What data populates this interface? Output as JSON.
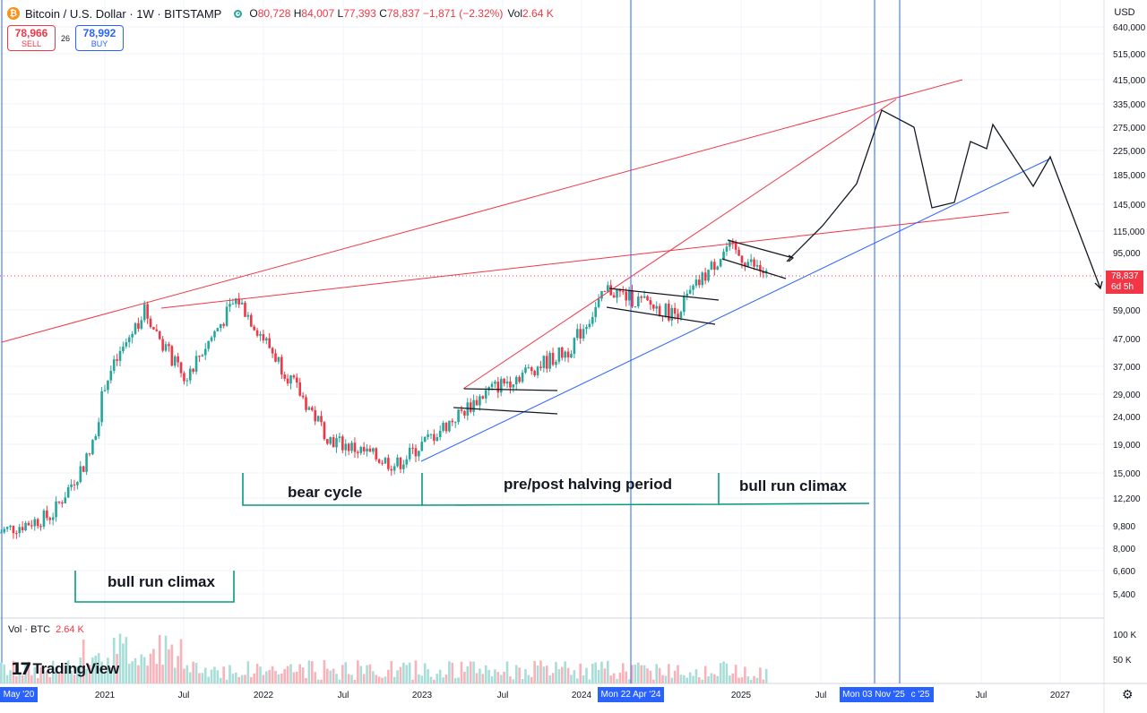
{
  "symbol": {
    "title": "Bitcoin / U.S. Dollar · 1W · BITSTAMP",
    "logo_letter": "₿"
  },
  "ohlc": {
    "open_key": "O",
    "open": "80,728",
    "high_key": "H",
    "high": "84,007",
    "low_key": "L",
    "low": "77,393",
    "close_key": "C",
    "close": "78,837",
    "change": "−1,871 (−2.32%)",
    "vol_key": "Vol",
    "vol": "2.64 K"
  },
  "trade": {
    "sell_price": "78,966",
    "sell_label": "SELL",
    "spread": "26",
    "buy_price": "78,992",
    "buy_label": "BUY"
  },
  "currency": "USD",
  "volume_pane": {
    "label": "Vol · BTC",
    "value": "2.64 K"
  },
  "branding": {
    "text": "TradingView"
  },
  "last_price": {
    "price": "78,837",
    "countdown": "6d 5h"
  },
  "colors": {
    "up": "#26a69a",
    "down": "#f23645",
    "accent": "#2962ff",
    "trendline_red": "#f23645",
    "trendline_blue": "#2962ff",
    "annotation": "#089981"
  },
  "axis": {
    "price_ticks": [
      "640,000",
      "515,000",
      "415,000",
      "335,000",
      "275,000",
      "225,000",
      "185,000",
      "145,000",
      "115,000",
      "95,000",
      "78,837",
      "59,000",
      "47,000",
      "37,000",
      "29,000",
      "24,000",
      "19,000",
      "15,000",
      "12,200",
      "9,800",
      "8,000",
      "6,600",
      "5,400"
    ],
    "volume_ticks": [
      "100 K",
      "50 K"
    ],
    "time_ticks": [
      "May '20",
      "2021",
      "Jul",
      "2022",
      "Jul",
      "2023",
      "Jul",
      "2024",
      "Mon 22 Apr '24",
      "2025",
      "Jul",
      "Mon 03 Nov '25",
      "c '25",
      "Jul",
      "2027"
    ]
  },
  "annotations": {
    "bull_run_climax_2021": "bull run climax",
    "bear_cycle": "bear cycle",
    "halving": "pre/post halving period",
    "bull_run_climax_2025": "bull run climax"
  },
  "chart_data": {
    "type": "candlestick",
    "interval": "1W",
    "scale": "log",
    "ylim": [
      4900,
      700000
    ],
    "xlim": [
      "2020-05-01",
      "2027-07-01"
    ],
    "price_points": [
      [
        "2020-05-01",
        9100
      ],
      [
        "2020-09-01",
        10500
      ],
      [
        "2020-12-01",
        18000
      ],
      [
        "2021-01-01",
        32000
      ],
      [
        "2021-04-01",
        59000
      ],
      [
        "2021-07-01",
        33000
      ],
      [
        "2021-11-01",
        65000
      ],
      [
        "2022-06-01",
        20000
      ],
      [
        "2022-11-01",
        16000
      ],
      [
        "2023-06-01",
        30000
      ],
      [
        "2023-12-01",
        42000
      ],
      [
        "2024-03-01",
        70000
      ],
      [
        "2024-08-01",
        57000
      ],
      [
        "2024-12-01",
        100000
      ],
      [
        "2025-03-01",
        78837
      ]
    ],
    "projection": [
      [
        "2025-03-15",
        88000
      ],
      [
        "2025-06-01",
        120000
      ],
      [
        "2025-09-01",
        180000
      ],
      [
        "2025-10-25",
        320000
      ],
      [
        "2026-01-01",
        280000
      ],
      [
        "2026-03-01",
        140000
      ],
      [
        "2026-05-01",
        148000
      ],
      [
        "2026-06-01",
        245000
      ],
      [
        "2026-07-01",
        230000
      ],
      [
        "2026-07-15",
        290000
      ],
      [
        "2026-10-01",
        170000
      ],
      [
        "2027-01-01",
        215000
      ],
      [
        "2027-05-01",
        78837
      ]
    ],
    "last_close": 78837,
    "vertical_markers": [
      "Mon 22 Apr '24",
      "Mon 03 Nov '25"
    ],
    "grid": true,
    "legend": "none"
  }
}
